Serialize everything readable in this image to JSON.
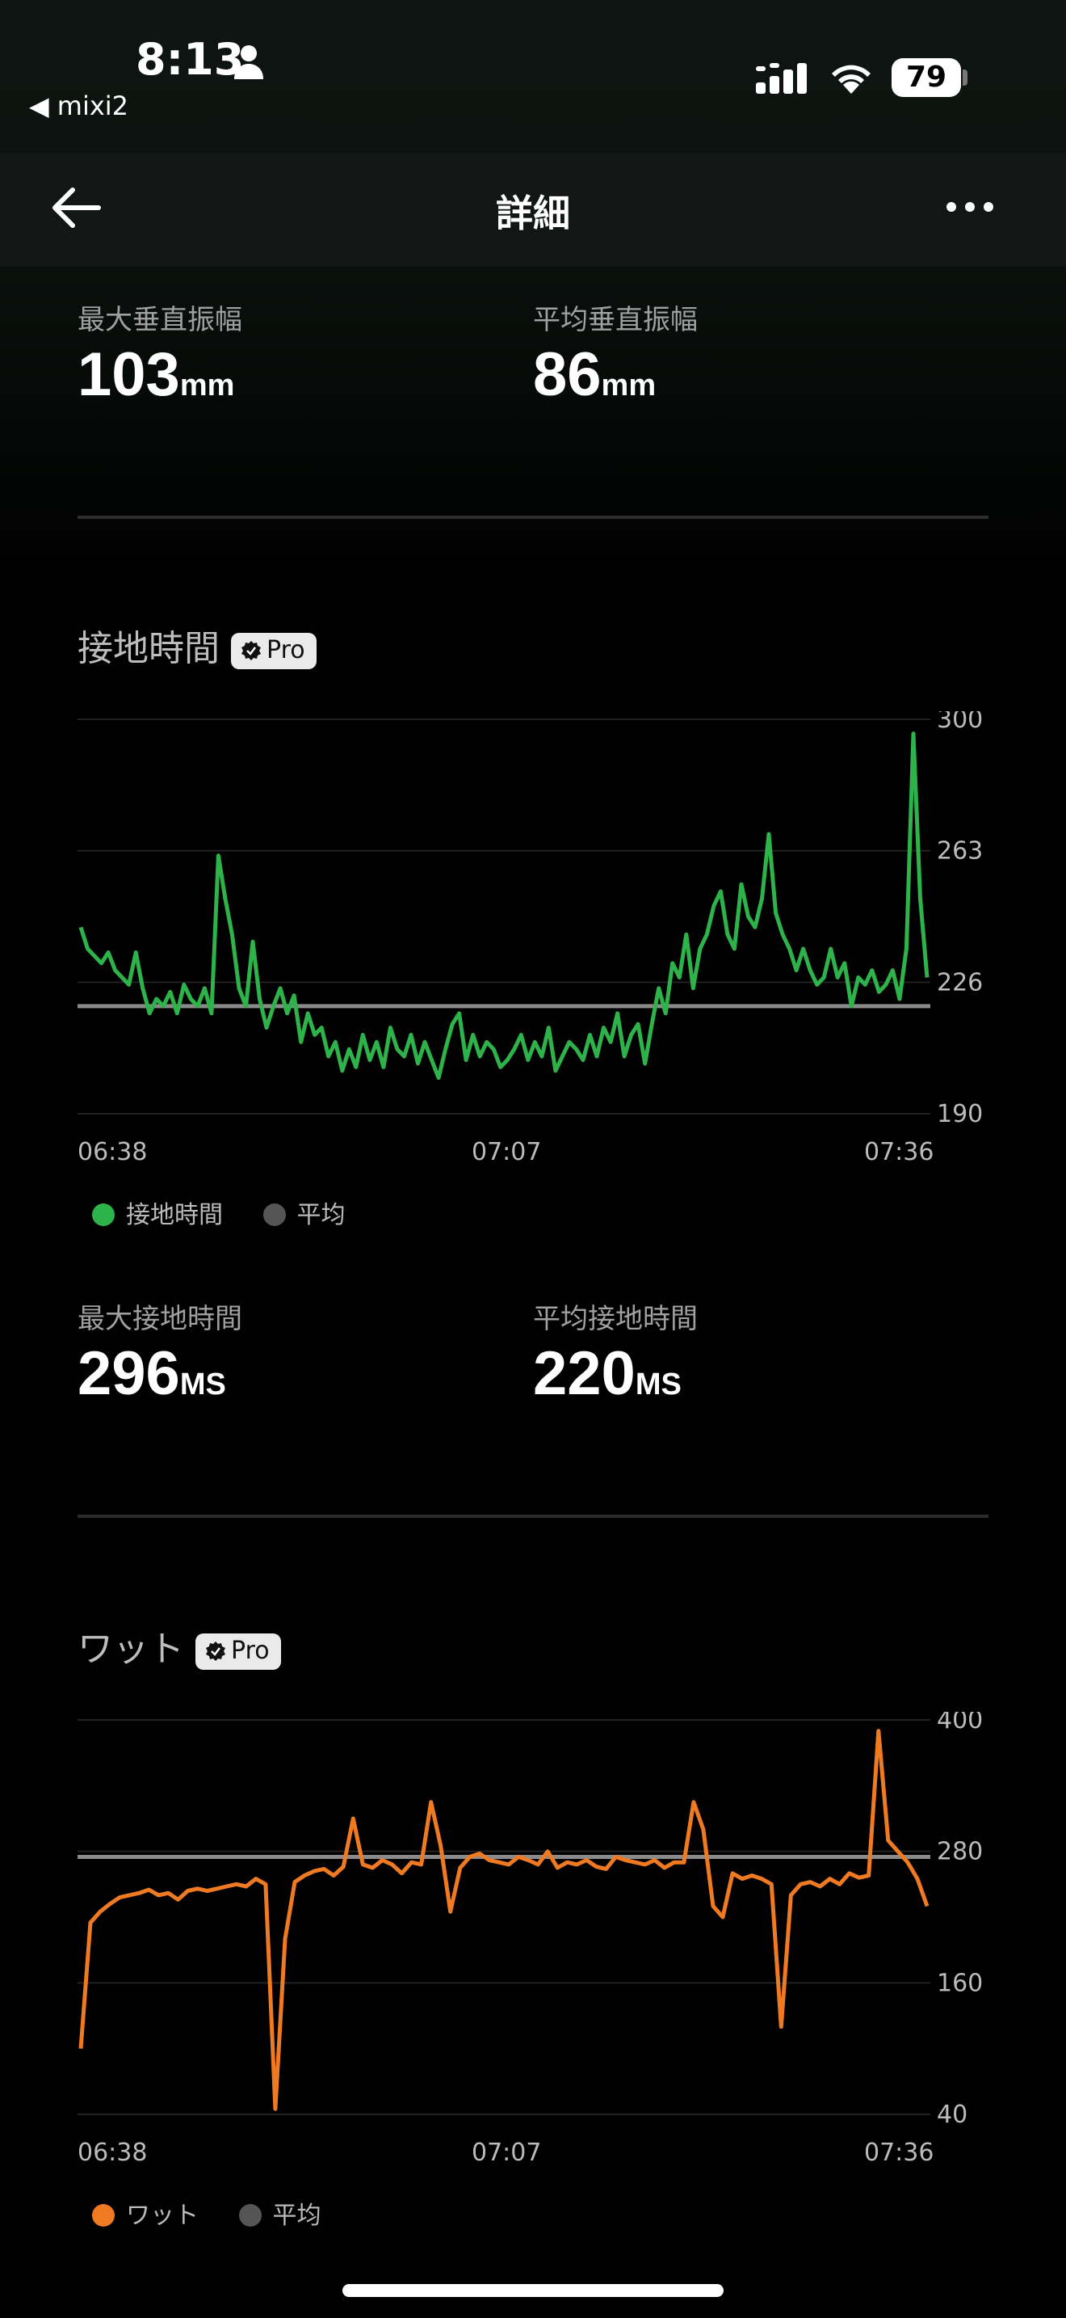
{
  "status_bar": {
    "time": "8:13",
    "back_app": "◀ mixi2",
    "battery": "79"
  },
  "nav": {
    "title": "詳細"
  },
  "vertical_oscillation": {
    "max_label": "最大垂直振幅",
    "max_value": "103",
    "max_unit": "mm",
    "avg_label": "平均垂直振幅",
    "avg_value": "86",
    "avg_unit": "mm"
  },
  "ground_contact": {
    "title": "接地時間",
    "badge": "Pro",
    "y_ticks": [
      "300",
      "263",
      "226",
      "190"
    ],
    "x_ticks": [
      "06:38",
      "07:07",
      "07:36"
    ],
    "legend_series": "接地時間",
    "legend_avg": "平均",
    "max_label": "最大接地時間",
    "max_value": "296",
    "max_unit": "MS",
    "avg_label": "平均接地時間",
    "avg_value": "220",
    "avg_unit": "MS",
    "color": "#2db34a"
  },
  "power": {
    "title": "ワット",
    "badge": "Pro",
    "y_ticks": [
      "400",
      "280",
      "160",
      "40"
    ],
    "x_ticks": [
      "06:38",
      "07:07",
      "07:36"
    ],
    "legend_series": "ワット",
    "legend_avg": "平均",
    "color": "#f07a22"
  },
  "chart_data": [
    {
      "type": "line",
      "x_range": [
        "06:38",
        "07:36"
      ],
      "ylim": [
        190,
        300
      ],
      "average": 220,
      "series": [
        {
          "name": "接地時間",
          "values": [
            242,
            236,
            234,
            232,
            235,
            230,
            228,
            226,
            235,
            225,
            218,
            222,
            220,
            224,
            218,
            226,
            222,
            220,
            225,
            218,
            262,
            250,
            240,
            225,
            220,
            238,
            222,
            214,
            220,
            225,
            218,
            223,
            210,
            218,
            212,
            214,
            206,
            210,
            202,
            208,
            203,
            212,
            205,
            210,
            203,
            214,
            208,
            206,
            212,
            204,
            210,
            205,
            200,
            208,
            215,
            218,
            205,
            212,
            206,
            210,
            208,
            203,
            205,
            208,
            212,
            205,
            210,
            206,
            214,
            202,
            206,
            210,
            208,
            205,
            212,
            206,
            214,
            210,
            218,
            206,
            212,
            215,
            204,
            215,
            225,
            218,
            232,
            228,
            240,
            225,
            236,
            240,
            248,
            252,
            240,
            236,
            254,
            245,
            242,
            250,
            268,
            246,
            240,
            236,
            230,
            236,
            230,
            226,
            228,
            236,
            228,
            232,
            220,
            228,
            226,
            230,
            224,
            226,
            230,
            222,
            236,
            296,
            250,
            228
          ]
        }
      ]
    },
    {
      "type": "line",
      "x_range": [
        "06:38",
        "07:36"
      ],
      "ylim": [
        40,
        400
      ],
      "average": 275,
      "series": [
        {
          "name": "ワット",
          "values": [
            100,
            215,
            225,
            232,
            238,
            240,
            242,
            245,
            240,
            242,
            236,
            244,
            246,
            244,
            246,
            248,
            250,
            248,
            255,
            250,
            45,
            200,
            252,
            258,
            262,
            264,
            258,
            266,
            310,
            268,
            265,
            272,
            268,
            260,
            270,
            268,
            325,
            285,
            225,
            265,
            275,
            278,
            272,
            270,
            268,
            275,
            272,
            268,
            280,
            265,
            270,
            268,
            272,
            266,
            264,
            275,
            272,
            270,
            268,
            272,
            265,
            270,
            270,
            325,
            300,
            230,
            220,
            260,
            255,
            258,
            255,
            250,
            120,
            240,
            250,
            252,
            248,
            255,
            250,
            260,
            256,
            258,
            390,
            290,
            280,
            270,
            255,
            230
          ]
        }
      ]
    }
  ]
}
